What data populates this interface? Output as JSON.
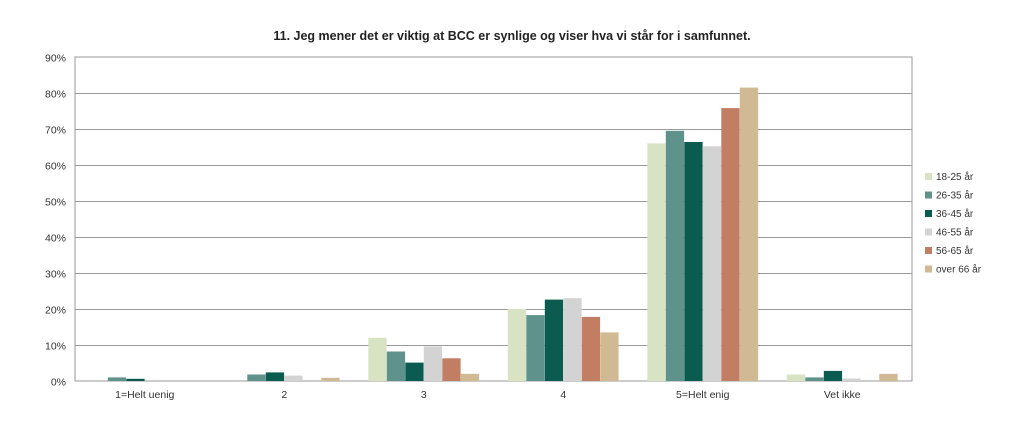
{
  "chart_data": {
    "type": "bar",
    "title": "11. Jeg mener det er viktig at BCC er synlige og viser hva vi står for i samfunnet.",
    "xlabel": "",
    "ylabel": "",
    "categories": [
      "1=Helt uenig",
      "2",
      "3",
      "4",
      "5=Helt enig",
      "Vet ikke"
    ],
    "ylim": [
      0,
      90
    ],
    "yticks": [
      0,
      10,
      20,
      30,
      40,
      50,
      60,
      70,
      80,
      90
    ],
    "ytick_labels": [
      "0%",
      "10%",
      "20%",
      "30%",
      "40%",
      "50%",
      "60%",
      "70%",
      "80%",
      "90%"
    ],
    "grid": true,
    "legend_position": "right",
    "series": [
      {
        "name": "18-25 år",
        "color": "#d8e3c4",
        "values": [
          0,
          0,
          12,
          20,
          66,
          1.8
        ]
      },
      {
        "name": "26-35 år",
        "color": "#5f928b",
        "values": [
          1,
          1.8,
          8.2,
          18.3,
          69.5,
          1
        ]
      },
      {
        "name": "36-45 år",
        "color": "#0b5b50",
        "values": [
          0.6,
          2.4,
          5.1,
          22.6,
          66.4,
          2.8
        ]
      },
      {
        "name": "46-55 år",
        "color": "#d3d3d3",
        "values": [
          0,
          1.5,
          9.6,
          23,
          65.2,
          0.7
        ]
      },
      {
        "name": "56-65 år",
        "color": "#c27e63",
        "values": [
          0,
          0,
          6.3,
          17.8,
          75.8,
          0
        ]
      },
      {
        "name": "over 66 år",
        "color": "#d1ba93",
        "values": [
          0,
          0.9,
          2,
          13.5,
          81.5,
          2
        ]
      }
    ]
  }
}
